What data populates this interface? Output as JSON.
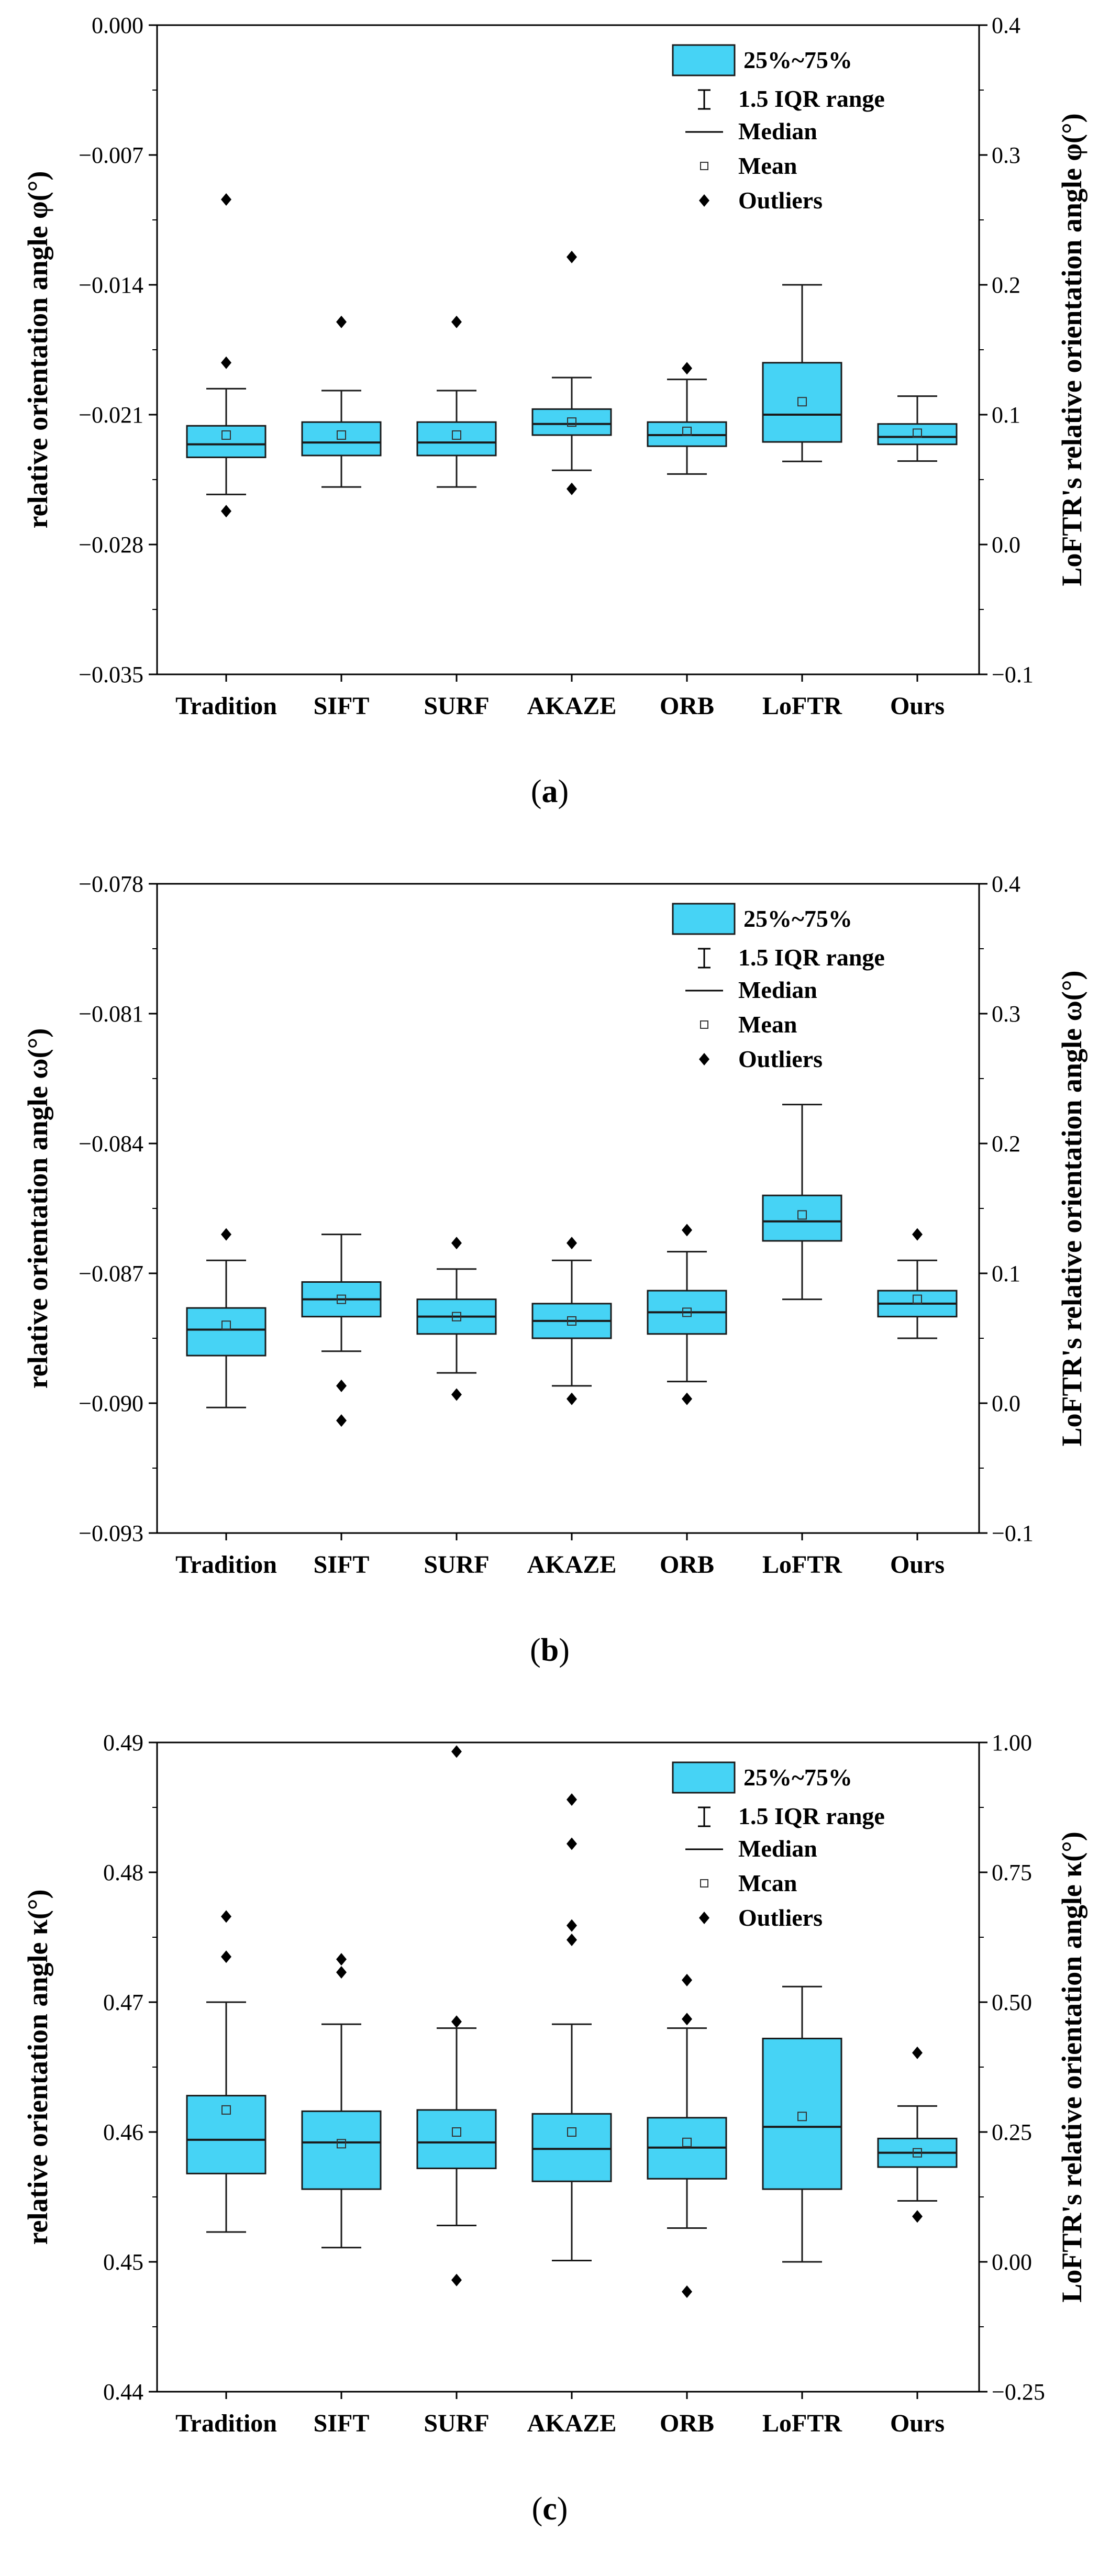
{
  "colors": {
    "box_fill": "#46d3f5",
    "box_stroke": "#1a1a1a",
    "axis": "#000000"
  },
  "legend": {
    "box_label": "25%~75%",
    "whisker_label": "1.5 IQR range",
    "median_label": "Median",
    "mean_labels": [
      "Mean",
      "Mean",
      "Mcan"
    ],
    "outlier_label": "Outliers"
  },
  "chart_data": [
    {
      "type": "box",
      "panel": "a",
      "caption_letter": "a",
      "ylabel": "relative orientation angle φ(°)",
      "y2label": "LoFTR's relative orientation angle φ(°)",
      "ylim": [
        -0.035,
        0.0
      ],
      "yticks": [
        0.0,
        -0.007,
        -0.014,
        -0.021,
        -0.028,
        -0.035
      ],
      "ytick_labels": [
        "0.000",
        "−0.007",
        "−0.014",
        "−0.021",
        "−0.028",
        "−0.035"
      ],
      "y2lim": [
        -0.1,
        0.4
      ],
      "y2ticks": [
        0.4,
        0.3,
        0.2,
        0.1,
        0.0,
        -0.1
      ],
      "y2tick_labels": [
        "0.4",
        "0.3",
        "0.2",
        "0.1",
        "0.0",
        "−0.1"
      ],
      "categories": [
        "Tradition",
        "SIFT",
        "SURF",
        "AKAZE",
        "ORB",
        "LoFTR",
        "Ours"
      ],
      "boxes": [
        {
          "axis": "left",
          "low": -0.0253,
          "q1": -0.0233,
          "median": -0.0226,
          "q3": -0.0216,
          "high": -0.0196,
          "mean": -0.0221,
          "outliers": [
            -0.0094,
            -0.0182,
            -0.0262
          ]
        },
        {
          "axis": "left",
          "low": -0.0249,
          "q1": -0.0232,
          "median": -0.0225,
          "q3": -0.0214,
          "high": -0.0197,
          "mean": -0.0221,
          "outliers": [
            -0.016
          ]
        },
        {
          "axis": "left",
          "low": -0.0249,
          "q1": -0.0232,
          "median": -0.0225,
          "q3": -0.0214,
          "high": -0.0197,
          "mean": -0.0221,
          "outliers": [
            -0.016
          ]
        },
        {
          "axis": "left",
          "low": -0.024,
          "q1": -0.0221,
          "median": -0.0215,
          "q3": -0.0207,
          "high": -0.019,
          "mean": -0.0214,
          "outliers": [
            -0.0125,
            -0.025
          ]
        },
        {
          "axis": "left",
          "low": -0.0242,
          "q1": -0.0227,
          "median": -0.0221,
          "q3": -0.0214,
          "high": -0.0191,
          "mean": -0.0219,
          "outliers": [
            -0.0185
          ]
        },
        {
          "axis": "right",
          "low": 0.064,
          "q1": 0.079,
          "median": 0.1,
          "q3": 0.14,
          "high": 0.2,
          "mean": 0.11,
          "outliers": []
        },
        {
          "axis": "left",
          "low": -0.0235,
          "q1": -0.0226,
          "median": -0.0222,
          "q3": -0.0215,
          "high": -0.02,
          "mean": -0.022,
          "outliers": []
        }
      ]
    },
    {
      "type": "box",
      "panel": "b",
      "caption_letter": "b",
      "ylabel": "relative orientation angle ω(°)",
      "y2label": "LoFTR's relative orientation angle ω(°)",
      "ylim": [
        -0.093,
        -0.078
      ],
      "yticks": [
        -0.078,
        -0.081,
        -0.084,
        -0.087,
        -0.09,
        -0.093
      ],
      "ytick_labels": [
        "−0.078",
        "−0.081",
        "−0.084",
        "−0.087",
        "−0.090",
        "−0.093"
      ],
      "y2lim": [
        -0.1,
        0.4
      ],
      "y2ticks": [
        0.4,
        0.3,
        0.2,
        0.1,
        0.0,
        -0.1
      ],
      "y2tick_labels": [
        "0.4",
        "0.3",
        "0.2",
        "0.1",
        "0.0",
        "−0.1"
      ],
      "categories": [
        "Tradition",
        "SIFT",
        "SURF",
        "AKAZE",
        "ORB",
        "LoFTR",
        "Ours"
      ],
      "boxes": [
        {
          "axis": "left",
          "low": -0.0901,
          "q1": -0.0889,
          "median": -0.0883,
          "q3": -0.0878,
          "high": -0.0867,
          "mean": -0.0882,
          "outliers": [
            -0.0861
          ]
        },
        {
          "axis": "left",
          "low": -0.0888,
          "q1": -0.088,
          "median": -0.0876,
          "q3": -0.0872,
          "high": -0.0861,
          "mean": -0.0876,
          "outliers": [
            -0.0896,
            -0.0904
          ]
        },
        {
          "axis": "left",
          "low": -0.0893,
          "q1": -0.0884,
          "median": -0.088,
          "q3": -0.0876,
          "high": -0.0869,
          "mean": -0.088,
          "outliers": [
            -0.0863,
            -0.0898
          ]
        },
        {
          "axis": "left",
          "low": -0.0896,
          "q1": -0.0885,
          "median": -0.0881,
          "q3": -0.0877,
          "high": -0.0867,
          "mean": -0.0881,
          "outliers": [
            -0.0863,
            -0.0899
          ]
        },
        {
          "axis": "left",
          "low": -0.0895,
          "q1": -0.0884,
          "median": -0.0879,
          "q3": -0.0874,
          "high": -0.0865,
          "mean": -0.0879,
          "outliers": [
            -0.086,
            -0.0899
          ]
        },
        {
          "axis": "right",
          "low": 0.08,
          "q1": 0.125,
          "median": 0.14,
          "q3": 0.16,
          "high": 0.23,
          "mean": 0.145,
          "outliers": []
        },
        {
          "axis": "left",
          "low": -0.0885,
          "q1": -0.088,
          "median": -0.0877,
          "q3": -0.0874,
          "high": -0.0867,
          "mean": -0.0876,
          "outliers": [
            -0.0861
          ]
        }
      ]
    },
    {
      "type": "box",
      "panel": "c",
      "caption_letter": "c",
      "ylabel": "relative orientation angle κ(°)",
      "y2label": "LoFTR's relative orientation angle κ(°)",
      "ylim": [
        0.44,
        0.49
      ],
      "yticks": [
        0.49,
        0.48,
        0.47,
        0.46,
        0.45,
        0.44
      ],
      "ytick_labels": [
        "0.49",
        "0.48",
        "0.47",
        "0.46",
        "0.45",
        "0.44"
      ],
      "y2lim": [
        -0.25,
        1.0
      ],
      "y2ticks": [
        1.0,
        0.75,
        0.5,
        0.25,
        0.0,
        -0.25
      ],
      "y2tick_labels": [
        "1.00",
        "0.75",
        "0.50",
        "0.25",
        "0.00",
        "−0.25"
      ],
      "categories": [
        "Tradition",
        "SIFT",
        "SURF",
        "AKAZE",
        "ORB",
        "LoFTR",
        "Ours"
      ],
      "boxes": [
        {
          "axis": "left",
          "low": 0.4523,
          "q1": 0.4568,
          "median": 0.4594,
          "q3": 0.4628,
          "high": 0.47,
          "mean": 0.4617,
          "outliers": [
            0.4766,
            0.4735
          ]
        },
        {
          "axis": "left",
          "low": 0.4511,
          "q1": 0.4556,
          "median": 0.4592,
          "q3": 0.4616,
          "high": 0.4683,
          "mean": 0.4591,
          "outliers": [
            0.4733,
            0.4723
          ]
        },
        {
          "axis": "left",
          "low": 0.4528,
          "q1": 0.4572,
          "median": 0.4592,
          "q3": 0.4617,
          "high": 0.468,
          "mean": 0.46,
          "outliers": [
            0.4893,
            0.4685,
            0.4486
          ]
        },
        {
          "axis": "left",
          "low": 0.4501,
          "q1": 0.4562,
          "median": 0.4587,
          "q3": 0.4614,
          "high": 0.4683,
          "mean": 0.46,
          "outliers": [
            0.4856,
            0.4822,
            0.4759,
            0.4748
          ]
        },
        {
          "axis": "left",
          "low": 0.4526,
          "q1": 0.4564,
          "median": 0.4588,
          "q3": 0.4611,
          "high": 0.468,
          "mean": 0.4592,
          "outliers": [
            0.4717,
            0.4687,
            0.4477
          ]
        },
        {
          "axis": "right",
          "low": 0.0,
          "q1": 0.14,
          "median": 0.26,
          "q3": 0.43,
          "high": 0.53,
          "mean": 0.28,
          "outliers": []
        },
        {
          "axis": "left",
          "low": 0.4547,
          "q1": 0.4573,
          "median": 0.4584,
          "q3": 0.4595,
          "high": 0.462,
          "mean": 0.4584,
          "outliers": [
            0.4661,
            0.4535
          ]
        }
      ]
    }
  ]
}
